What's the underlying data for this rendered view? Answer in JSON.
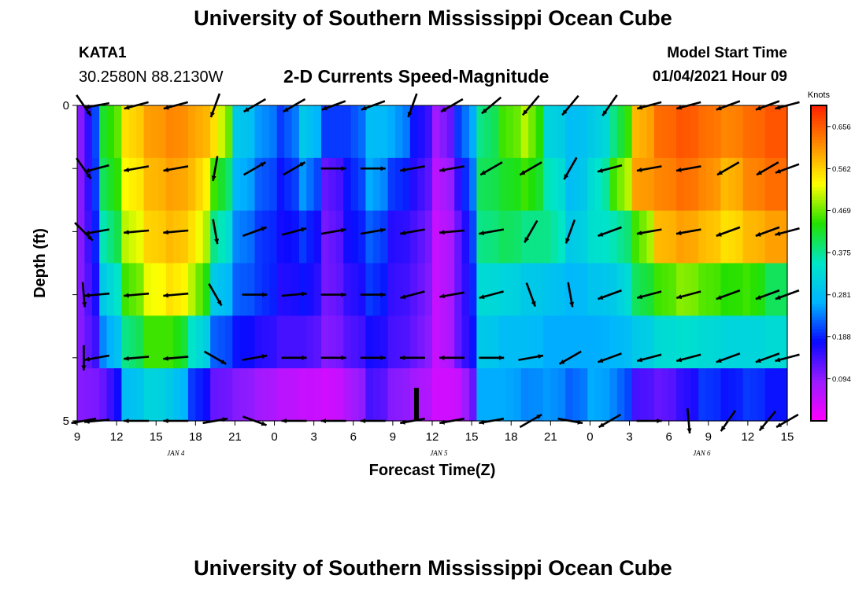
{
  "header": {
    "title": "University of Southern Mississippi Ocean Cube",
    "station": "KATA1",
    "coords": "30.2580N 88.2130W",
    "subtitle": "2-D Currents Speed-Magnitude",
    "model_start_label": "Model Start Time",
    "model_start_value": "01/04/2021 Hour 09"
  },
  "footer": {
    "title": "University of Southern Mississippi Ocean Cube"
  },
  "colors": {
    "scale": [
      "#ff00ff",
      "#9a1cff",
      "#0a0aff",
      "#00b4ff",
      "#00e6c8",
      "#22e000",
      "#ffff00",
      "#ff8c00",
      "#ff2000"
    ]
  },
  "chart_data": {
    "type": "heatmap",
    "xlabel": "Forecast Time(Z)",
    "ylabel": "Depth (ft)",
    "x_tick_labels": [
      "9",
      "12",
      "15",
      "18",
      "21",
      "0",
      "3",
      "6",
      "9",
      "12",
      "15",
      "18",
      "21",
      "0",
      "3",
      "6",
      "9",
      "12",
      "15"
    ],
    "date_labels": [
      {
        "label": "JAN 4",
        "hour": 7.5
      },
      {
        "label": "JAN 5",
        "hour": 27.5
      },
      {
        "label": "JAN 6",
        "hour": 47.5
      }
    ],
    "x_range_hours": [
      0,
      54
    ],
    "y_tick_labels": [
      "0",
      "5"
    ],
    "depth_range_ft": [
      0,
      5
    ],
    "depth_levels_ft": [
      0,
      1,
      2,
      3,
      4,
      5
    ],
    "colorbar": {
      "label": "Knots",
      "min": 0.0,
      "max": 0.703,
      "ticks": [
        "0.656",
        "0.562",
        "0.469",
        "0.375",
        "0.281",
        "0.188",
        "0.094"
      ]
    },
    "speed_profile_knots": [
      [
        0.1,
        0.1,
        0.1,
        0.1,
        0.1,
        0.1
      ],
      [
        0.42,
        0.4,
        0.36,
        0.3,
        0.24,
        0.12
      ],
      [
        0.55,
        0.53,
        0.5,
        0.45,
        0.38,
        0.28
      ],
      [
        0.6,
        0.58,
        0.56,
        0.52,
        0.45,
        0.32
      ],
      [
        0.62,
        0.6,
        0.58,
        0.55,
        0.45,
        0.3
      ],
      [
        0.6,
        0.58,
        0.55,
        0.5,
        0.35,
        0.2
      ],
      [
        0.55,
        0.45,
        0.38,
        0.3,
        0.22,
        0.12
      ],
      [
        0.3,
        0.27,
        0.24,
        0.22,
        0.18,
        0.1
      ],
      [
        0.25,
        0.22,
        0.2,
        0.2,
        0.16,
        0.08
      ],
      [
        0.2,
        0.18,
        0.17,
        0.16,
        0.14,
        0.06
      ],
      [
        0.3,
        0.25,
        0.2,
        0.18,
        0.14,
        0.05
      ],
      [
        0.2,
        0.12,
        0.11,
        0.11,
        0.1,
        0.04
      ],
      [
        0.2,
        0.18,
        0.17,
        0.15,
        0.13,
        0.07
      ],
      [
        0.28,
        0.26,
        0.22,
        0.2,
        0.17,
        0.14
      ],
      [
        0.26,
        0.2,
        0.16,
        0.15,
        0.14,
        0.1
      ],
      [
        0.18,
        0.16,
        0.14,
        0.13,
        0.12,
        0.08
      ],
      [
        0.08,
        0.06,
        0.05,
        0.05,
        0.05,
        0.04
      ],
      [
        0.2,
        0.15,
        0.12,
        0.12,
        0.12,
        0.05
      ],
      [
        0.38,
        0.4,
        0.38,
        0.33,
        0.3,
        0.26
      ],
      [
        0.45,
        0.42,
        0.4,
        0.32,
        0.28,
        0.26
      ],
      [
        0.5,
        0.45,
        0.38,
        0.3,
        0.28,
        0.24
      ],
      [
        0.32,
        0.36,
        0.38,
        0.29,
        0.26,
        0.25
      ],
      [
        0.28,
        0.28,
        0.3,
        0.27,
        0.26,
        0.22
      ],
      [
        0.3,
        0.33,
        0.34,
        0.29,
        0.26,
        0.26
      ],
      [
        0.38,
        0.45,
        0.36,
        0.3,
        0.27,
        0.24
      ],
      [
        0.58,
        0.6,
        0.45,
        0.4,
        0.3,
        0.14
      ],
      [
        0.64,
        0.62,
        0.58,
        0.45,
        0.33,
        0.12
      ],
      [
        0.66,
        0.64,
        0.6,
        0.48,
        0.34,
        0.15
      ],
      [
        0.64,
        0.62,
        0.58,
        0.46,
        0.33,
        0.2
      ],
      [
        0.62,
        0.58,
        0.55,
        0.44,
        0.32,
        0.18
      ],
      [
        0.64,
        0.62,
        0.58,
        0.45,
        0.32,
        0.2
      ],
      [
        0.66,
        0.64,
        0.6,
        0.4,
        0.33,
        0.18
      ]
    ],
    "arrow_times_hours": [
      0.5,
      1.5,
      4.5,
      7.5,
      10.5,
      13.5,
      16.5,
      19.5,
      22.5,
      25.5,
      28.5,
      31.5,
      34.5,
      37.5,
      40.5,
      43.5,
      46.5,
      49.5,
      52.5,
      54
    ],
    "arrow_directions_deg": [
      [
        -55,
        -170,
        -165,
        -165,
        -110,
        -150,
        -150,
        -160,
        -160,
        -110,
        -150,
        -140,
        -130,
        -130,
        -125,
        -165,
        -165,
        -160,
        -160,
        -165
      ],
      [
        -55,
        -165,
        -170,
        -170,
        -100,
        30,
        30,
        0,
        0,
        -170,
        -170,
        -150,
        -150,
        -120,
        -165,
        -170,
        -170,
        -150,
        -150,
        -160
      ],
      [
        -45,
        -170,
        -175,
        -175,
        -80,
        20,
        15,
        10,
        10,
        -170,
        -175,
        -170,
        -120,
        -110,
        -160,
        -170,
        -170,
        -160,
        -160,
        -165
      ],
      [
        -85,
        -175,
        -175,
        -175,
        -60,
        0,
        5,
        0,
        0,
        -165,
        -170,
        -165,
        -70,
        -80,
        -160,
        -165,
        -165,
        -160,
        -160,
        -160
      ],
      [
        -90,
        -170,
        -175,
        -175,
        -30,
        10,
        0,
        0,
        0,
        -180,
        -180,
        0,
        10,
        -150,
        -160,
        -165,
        -165,
        -160,
        -160,
        -165
      ],
      [
        -170,
        -175,
        -180,
        -180,
        10,
        -20,
        -180,
        -180,
        -180,
        -170,
        -170,
        -170,
        30,
        -10,
        -150,
        0,
        -85,
        -125,
        -130,
        -150
      ]
    ],
    "data_gap_marker_hour": 25.8
  }
}
